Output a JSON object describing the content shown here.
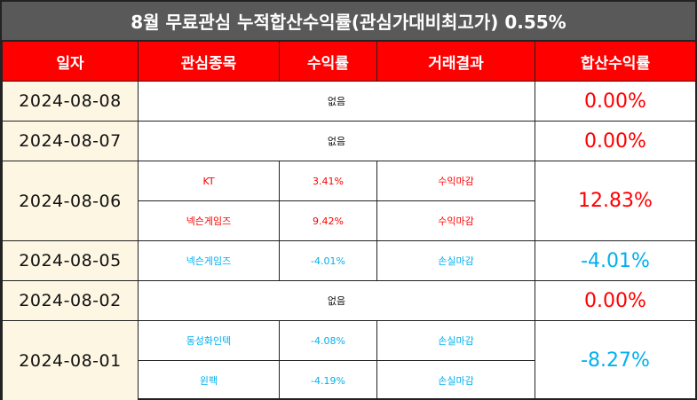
{
  "title": "8월 무료관심 누적합산수익률(관심가대비최고가) 0.55%",
  "headers": [
    "일자",
    "관심종목",
    "수익률",
    "거래결과",
    "합산수익률"
  ],
  "rows": [
    {
      "date": "2024-08-08",
      "none": "없음",
      "total": "0.00%"
    },
    {
      "date": "2024-08-07",
      "none": "없음",
      "total": "0.00%"
    },
    {
      "date": "2024-08-06",
      "total": "12.83%",
      "items": [
        {
          "stock": "KT",
          "ret": "3.41%",
          "result": "수익마감"
        },
        {
          "stock": "넥슨게임즈",
          "ret": "9.42%",
          "result": "수익마감"
        }
      ]
    },
    {
      "date": "2024-08-05",
      "total": "-4.01%",
      "items": [
        {
          "stock": "넥슨게임즈",
          "ret": "-4.01%",
          "result": "손실마감"
        }
      ]
    },
    {
      "date": "2024-08-02",
      "none": "없음",
      "total": "0.00%"
    },
    {
      "date": "2024-08-01",
      "total": "-8.27%",
      "items": [
        {
          "stock": "동성화인텍",
          "ret": "-4.08%",
          "result": "손실마감"
        },
        {
          "stock": "윈팩",
          "ret": "-4.19%",
          "result": "손실마감"
        }
      ]
    }
  ],
  "colors": {
    "header_bg": "#ff0000",
    "title_bg": "#595959",
    "date_bg": "#fdf6e3",
    "gain": "#ff0000",
    "loss": "#00b0f0"
  }
}
